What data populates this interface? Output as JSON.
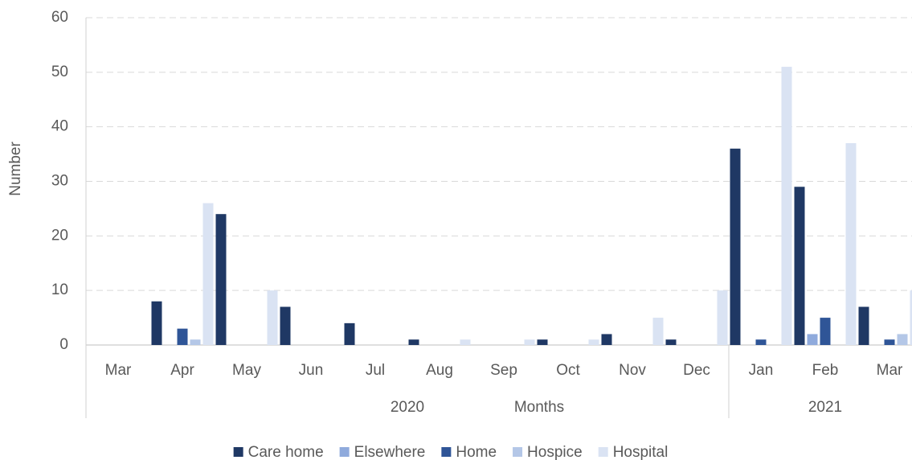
{
  "chart_data": {
    "type": "bar",
    "x_label": "Months",
    "y_label": "Number",
    "categories": [
      "Mar",
      "Apr",
      "May",
      "Jun",
      "Jul",
      "Aug",
      "Sep",
      "Oct",
      "Nov",
      "Dec",
      "Jan",
      "Feb",
      "Mar"
    ],
    "category_groups": [
      {
        "label": "2020",
        "span": 10
      },
      {
        "label": "2021",
        "span": 3
      }
    ],
    "series": [
      {
        "name": "Care home",
        "color": "#1f3864",
        "values": [
          0,
          8,
          24,
          7,
          4,
          1,
          0,
          1,
          2,
          1,
          36,
          29,
          7
        ]
      },
      {
        "name": "Elsewhere",
        "color": "#8faadc",
        "values": [
          0,
          0,
          0,
          0,
          0,
          0,
          0,
          0,
          0,
          0,
          0,
          2,
          0
        ]
      },
      {
        "name": "Home",
        "color": "#2f5597",
        "values": [
          0,
          3,
          0,
          0,
          0,
          0,
          0,
          0,
          0,
          0,
          1,
          5,
          1
        ]
      },
      {
        "name": "Hospice",
        "color": "#b4c7e7",
        "values": [
          0,
          1,
          0,
          0,
          0,
          0,
          0,
          0,
          0,
          0,
          0,
          0,
          2
        ]
      },
      {
        "name": "Hospital",
        "color": "#dae3f3",
        "values": [
          0,
          26,
          10,
          0,
          0,
          1,
          1,
          1,
          5,
          10,
          51,
          37,
          10
        ]
      }
    ],
    "ylim": [
      0,
      60
    ],
    "yticks": [
      0,
      10,
      20,
      30,
      40,
      50,
      60
    ],
    "grid": true,
    "legend": "bottom"
  }
}
